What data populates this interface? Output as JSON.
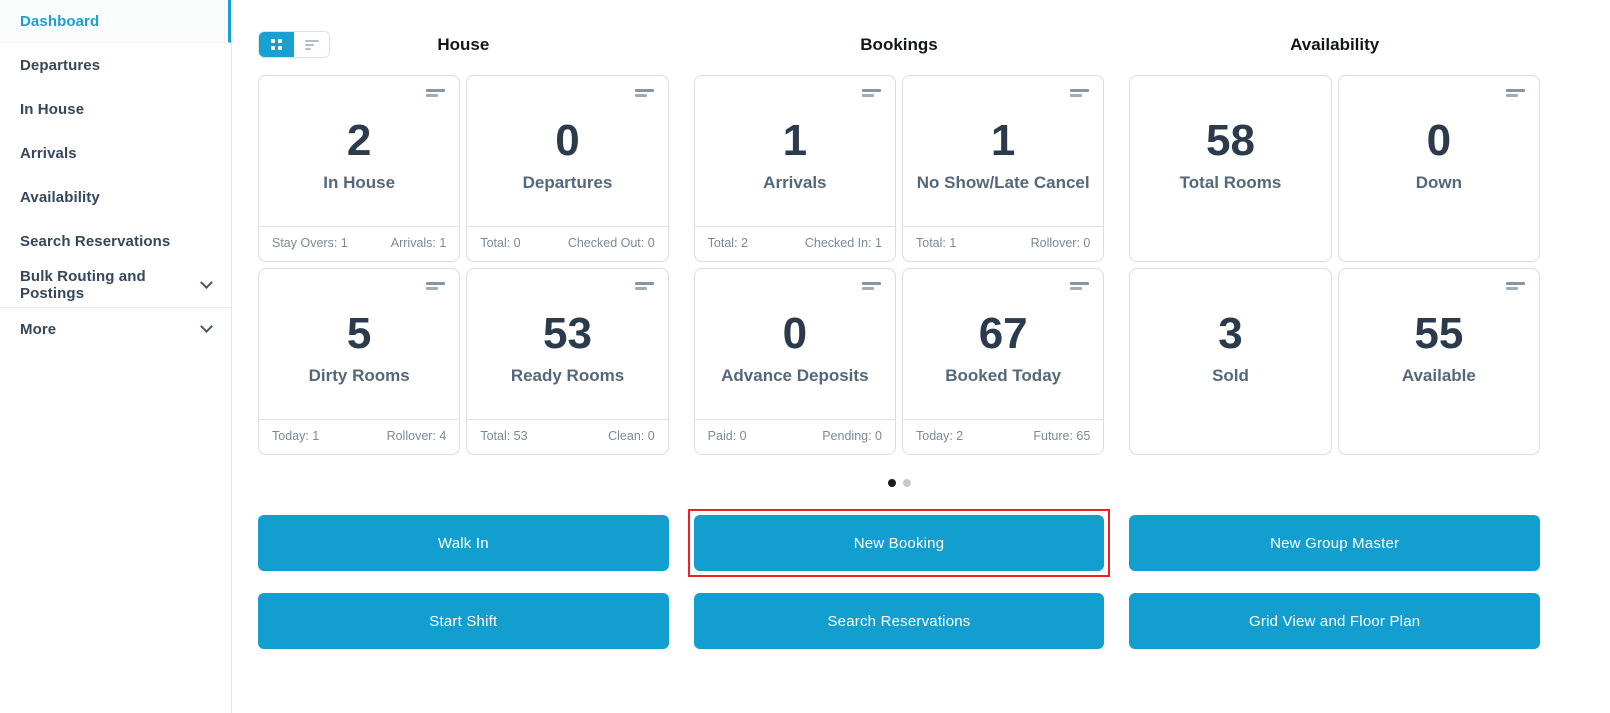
{
  "colors": {
    "accent": "#129fd0",
    "active_nav": "#18a0d2",
    "highlight_red": "#ee1f27",
    "card_value_text": "#2c3b4c",
    "card_label_text": "#54687c",
    "stat_text": "#7b8995",
    "card_border": "#d8dde2",
    "active_dot": "#1b1b1b",
    "inactive_dot": "#c9c9c9"
  },
  "icons": {
    "view_grid": "grid-view-icon",
    "view_list": "list-view-icon",
    "card_menu": "menu-bars-icon",
    "expand": "chevron-down-icon"
  },
  "sidebar": {
    "items": [
      {
        "label": "Dashboard",
        "active": true
      },
      {
        "label": "Departures"
      },
      {
        "label": "In House"
      },
      {
        "label": "Arrivals"
      },
      {
        "label": "Availability"
      },
      {
        "label": "Search Reservations"
      },
      {
        "label": "Bulk Routing and Postings",
        "expandable": true
      },
      {
        "label": "More",
        "expandable": true
      }
    ]
  },
  "view_toggle": {
    "active": "grid"
  },
  "sections": [
    {
      "title": "House",
      "cards": [
        {
          "value": "2",
          "label": "In House",
          "stat_left": "Stay Overs: 1",
          "stat_right": "Arrivals: 1"
        },
        {
          "value": "0",
          "label": "Departures",
          "stat_left": "Total: 0",
          "stat_right": "Checked Out: 0"
        },
        {
          "value": "5",
          "label": "Dirty Rooms",
          "stat_left": "Today: 1",
          "stat_right": "Rollover: 4"
        },
        {
          "value": "53",
          "label": "Ready Rooms",
          "stat_left": "Total: 53",
          "stat_right": "Clean: 0"
        }
      ]
    },
    {
      "title": "Bookings",
      "cards": [
        {
          "value": "1",
          "label": "Arrivals",
          "stat_left": "Total: 2",
          "stat_right": "Checked In: 1"
        },
        {
          "value": "1",
          "label": "No Show/Late Cancel",
          "stat_left": "Total: 1",
          "stat_right": "Rollover: 0"
        },
        {
          "value": "0",
          "label": "Advance Deposits",
          "stat_left": "Paid: 0",
          "stat_right": "Pending: 0"
        },
        {
          "value": "67",
          "label": "Booked Today",
          "stat_left": "Today: 2",
          "stat_right": "Future: 65"
        }
      ]
    },
    {
      "title": "Availability",
      "cards": [
        {
          "value": "58",
          "label": "Total Rooms"
        },
        {
          "value": "0",
          "label": "Down"
        },
        {
          "value": "3",
          "label": "Sold"
        },
        {
          "value": "55",
          "label": "Available"
        }
      ]
    }
  ],
  "carousel": {
    "page_count": 2,
    "active_index": 0
  },
  "actions": {
    "buttons": [
      {
        "label": "Walk In"
      },
      {
        "label": "New Booking",
        "highlighted": true
      },
      {
        "label": "New Group Master"
      },
      {
        "label": "Start Shift"
      },
      {
        "label": "Search Reservations"
      },
      {
        "label": "Grid View and Floor Plan"
      }
    ]
  }
}
